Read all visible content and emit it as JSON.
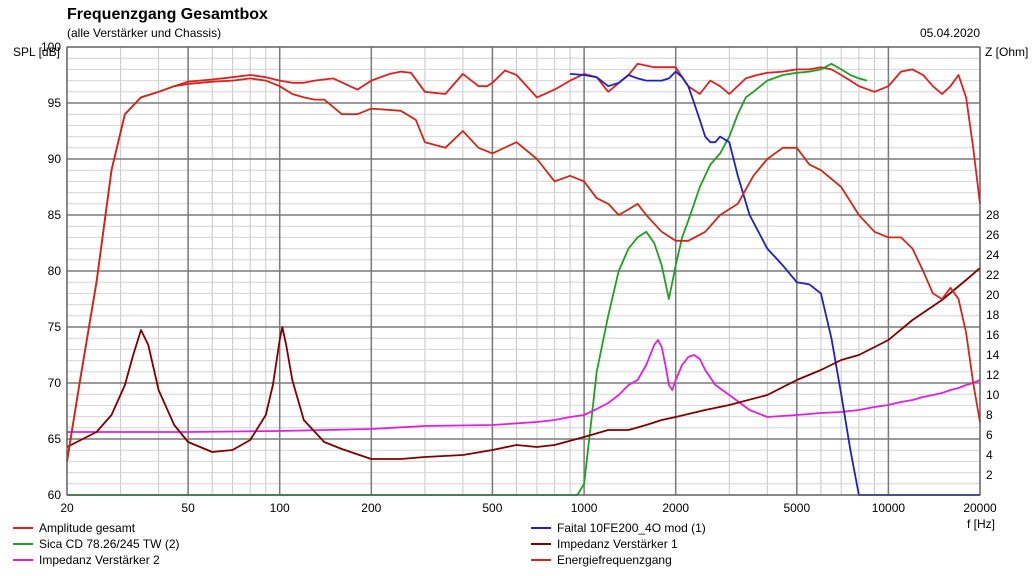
{
  "chart_data": {
    "type": "line",
    "title": "Frequenzgang Gesamtbox",
    "subtitle": "(alle Verstärker und Chassis)",
    "date": "05.04.2020",
    "ylabel_left": "SPL [dB]",
    "ylabel_right": "Z [Ohm]",
    "xlabel": "f [Hz]",
    "x_scale": "log",
    "xlim": [
      20,
      20000
    ],
    "ylim_left": [
      60,
      100
    ],
    "ylim_right": [
      0,
      28
    ],
    "grid": true,
    "x_ticks": [
      {
        "value": 20,
        "label": "20"
      },
      {
        "value": 50,
        "label": "50"
      },
      {
        "value": 100,
        "label": "100"
      },
      {
        "value": 200,
        "label": "200"
      },
      {
        "value": 500,
        "label": "500"
      },
      {
        "value": 1000,
        "label": "1000"
      },
      {
        "value": 2000,
        "label": "2000"
      },
      {
        "value": 5000,
        "label": "5000"
      },
      {
        "value": 10000,
        "label": "10000"
      },
      {
        "value": 20000,
        "label": "20000"
      }
    ],
    "y_ticks_left": [
      {
        "value": 60,
        "label": "60"
      },
      {
        "value": 65,
        "label": "65"
      },
      {
        "value": 70,
        "label": "70"
      },
      {
        "value": 75,
        "label": "75"
      },
      {
        "value": 80,
        "label": "80"
      },
      {
        "value": 85,
        "label": "85"
      },
      {
        "value": 90,
        "label": "90"
      },
      {
        "value": 95,
        "label": "95"
      },
      {
        "value": 100,
        "label": "100"
      }
    ],
    "y_ticks_right": [
      {
        "value": 2,
        "label": "2"
      },
      {
        "value": 4,
        "label": "4"
      },
      {
        "value": 6,
        "label": "6"
      },
      {
        "value": 8,
        "label": "8"
      },
      {
        "value": 10,
        "label": "10"
      },
      {
        "value": 12,
        "label": "12"
      },
      {
        "value": 14,
        "label": "14"
      },
      {
        "value": 16,
        "label": "16"
      },
      {
        "value": 18,
        "label": "18"
      },
      {
        "value": 20,
        "label": "20"
      },
      {
        "value": 22,
        "label": "22"
      },
      {
        "value": 24,
        "label": "24"
      },
      {
        "value": 26,
        "label": "26"
      },
      {
        "value": 28,
        "label": "28"
      }
    ],
    "legend_position": "bottom",
    "series": [
      {
        "name": "Amplitude gesamt",
        "color": "#e02020",
        "axis": "left",
        "x": [
          20,
          22,
          25,
          28,
          31,
          35,
          40,
          45,
          50,
          60,
          70,
          80,
          90,
          100,
          110,
          120,
          130,
          150,
          170,
          180,
          200,
          230,
          250,
          270,
          300,
          350,
          400,
          450,
          480,
          500,
          550,
          600,
          700,
          800,
          900,
          1000,
          1100,
          1200,
          1400,
          1500,
          1700,
          2000,
          2200,
          2400,
          2600,
          2800,
          3000,
          3400,
          3700,
          4000,
          4500,
          5000,
          5500,
          6000,
          6500,
          7000,
          7500,
          8000,
          9000,
          10000,
          11000,
          12000,
          13000,
          14000,
          15000,
          16000,
          17000,
          18000,
          19000,
          20000
        ],
        "y": [
          63,
          70,
          79,
          89,
          94,
          95.5,
          96,
          96.5,
          96.9,
          97.1,
          97.3,
          97.5,
          97.3,
          97.0,
          96.8,
          96.8,
          97.0,
          97.2,
          96.5,
          96.2,
          97.0,
          97.6,
          97.8,
          97.7,
          96.0,
          95.8,
          97.6,
          96.5,
          96.5,
          96.8,
          97.9,
          97.5,
          95.5,
          96.2,
          97.0,
          97.6,
          97.3,
          96.0,
          97.5,
          98.5,
          98.2,
          98.2,
          96.5,
          95.8,
          97.0,
          96.5,
          95.8,
          97.2,
          97.5,
          97.7,
          97.8,
          98.0,
          98.0,
          98.2,
          98.0,
          97.5,
          97.0,
          96.5,
          96.0,
          96.5,
          97.8,
          98.0,
          97.5,
          96.5,
          95.8,
          96.5,
          97.5,
          95.5,
          91.0,
          86.0
        ]
      },
      {
        "name": "Sica CD 78.26/245 TW (2)",
        "color": "#20a020",
        "axis": "left",
        "x": [
          20,
          900,
          950,
          1000,
          1050,
          1100,
          1200,
          1300,
          1400,
          1500,
          1600,
          1700,
          1800,
          1900,
          2000,
          2100,
          2200,
          2300,
          2400,
          2600,
          2800,
          3000,
          3200,
          3400,
          3600,
          4000,
          4500,
          5000,
          5500,
          6000,
          6500,
          7000,
          7500,
          8000,
          8500
        ],
        "y": [
          60,
          60,
          60,
          61,
          66,
          71,
          76,
          80,
          82,
          83,
          83.5,
          82.5,
          80.5,
          77.5,
          80.5,
          83,
          84.5,
          86,
          87.5,
          89.5,
          90.5,
          92,
          94,
          95.5,
          96,
          97,
          97.5,
          97.7,
          97.8,
          98.0,
          98.5,
          98.0,
          97.5,
          97.2,
          97.0
        ]
      },
      {
        "name": "Impedanz Verstärker 2",
        "color": "#e020e0",
        "axis": "right",
        "x": [
          20,
          30,
          50,
          100,
          200,
          300,
          500,
          700,
          800,
          900,
          1000,
          1100,
          1200,
          1300,
          1400,
          1500,
          1600,
          1700,
          1750,
          1800,
          1850,
          1900,
          1950,
          2000,
          2100,
          2200,
          2300,
          2400,
          2500,
          2700,
          3000,
          3500,
          4000,
          5000,
          6000,
          7000,
          8000,
          9000,
          10000,
          11000,
          12000,
          13000,
          14000,
          15000,
          16000,
          17000,
          18000,
          19000,
          20000
        ],
        "y": [
          6.3,
          6.3,
          6.3,
          6.4,
          6.6,
          6.9,
          7.0,
          7.3,
          7.5,
          7.8,
          8.0,
          8.6,
          9.2,
          10.0,
          11.0,
          11.5,
          13.0,
          15.0,
          15.5,
          14.8,
          13.0,
          11.0,
          10.5,
          11.5,
          13.0,
          13.8,
          14.0,
          13.6,
          12.5,
          11.0,
          10.0,
          8.5,
          7.8,
          8.0,
          8.2,
          8.3,
          8.5,
          8.8,
          9.0,
          9.3,
          9.5,
          9.8,
          10.0,
          10.2,
          10.5,
          10.7,
          11.0,
          11.2,
          11.5
        ]
      },
      {
        "name": "Faital 10FE200_4O mod (1)",
        "color": "#2020c0",
        "axis": "left",
        "x": [
          900,
          1000,
          1100,
          1200,
          1300,
          1400,
          1500,
          1600,
          1700,
          1800,
          1900,
          2000,
          2100,
          2200,
          2300,
          2400,
          2500,
          2600,
          2700,
          2800,
          3000,
          3200,
          3500,
          4000,
          4500,
          5000,
          5500,
          6000,
          6500,
          7000,
          7500,
          8000,
          9000,
          10000,
          12000,
          15000,
          20000
        ],
        "y": [
          97.6,
          97.5,
          97.3,
          96.5,
          96.8,
          97.5,
          97.2,
          97.0,
          97.0,
          97.0,
          97.2,
          97.8,
          97.3,
          96.5,
          95.0,
          93.5,
          92.0,
          91.5,
          91.5,
          92.0,
          91.5,
          88.5,
          85.0,
          82.0,
          80.5,
          79.0,
          78.8,
          78.0,
          74.0,
          69.0,
          64.0,
          60.0,
          60.0,
          60.0,
          60.0,
          60.0,
          60.0
        ]
      },
      {
        "name": "Impedanz Verstärker 1",
        "color": "#800000",
        "axis": "right",
        "x": [
          20,
          25,
          28,
          31,
          33,
          35,
          37,
          40,
          45,
          50,
          60,
          70,
          80,
          90,
          95,
          100,
          102,
          105,
          110,
          120,
          140,
          160,
          200,
          250,
          300,
          400,
          500,
          600,
          700,
          800,
          1000,
          1200,
          1400,
          1600,
          1800,
          2000,
          2500,
          3000,
          4000,
          5000,
          6000,
          7000,
          8000,
          10000,
          12000,
          15000,
          18000,
          20000
        ],
        "y": [
          4.8,
          6.3,
          8.0,
          11.0,
          14.0,
          16.5,
          15.0,
          10.5,
          7.0,
          5.3,
          4.3,
          4.5,
          5.5,
          8.0,
          11.0,
          15.5,
          16.8,
          15.0,
          11.5,
          7.5,
          5.3,
          4.6,
          3.6,
          3.6,
          3.8,
          4.0,
          4.5,
          5.0,
          4.8,
          5.0,
          5.8,
          6.5,
          6.5,
          7.0,
          7.5,
          7.8,
          8.5,
          9.0,
          10.0,
          11.5,
          12.5,
          13.5,
          14.0,
          15.5,
          17.5,
          19.5,
          21.5,
          22.7
        ]
      },
      {
        "name": "Energiefrequenzgang",
        "color": "#d02818",
        "axis": "left",
        "x": [
          20,
          22,
          25,
          28,
          31,
          35,
          40,
          45,
          50,
          60,
          70,
          80,
          90,
          100,
          110,
          120,
          130,
          140,
          160,
          180,
          200,
          250,
          280,
          300,
          350,
          400,
          450,
          500,
          600,
          700,
          800,
          900,
          1000,
          1100,
          1200,
          1300,
          1400,
          1500,
          1600,
          1800,
          2000,
          2200,
          2500,
          2800,
          3200,
          3600,
          4000,
          4500,
          5000,
          5500,
          6000,
          7000,
          8000,
          9000,
          10000,
          11000,
          12000,
          13000,
          14000,
          15000,
          16000,
          17000,
          18000,
          19000,
          20000
        ],
        "y": [
          63,
          70,
          79,
          89,
          94,
          95.5,
          96,
          96.5,
          96.7,
          96.9,
          97.0,
          97.2,
          97.0,
          96.5,
          95.8,
          95.5,
          95.3,
          95.3,
          94.0,
          94.0,
          94.5,
          94.3,
          93.5,
          91.5,
          91.0,
          92.5,
          91.0,
          90.5,
          91.5,
          90.0,
          88.0,
          88.5,
          88.0,
          86.5,
          86.0,
          85.0,
          85.5,
          86.0,
          85.0,
          83.5,
          82.7,
          82.7,
          83.5,
          85.0,
          86.0,
          88.5,
          90.0,
          91.0,
          91.0,
          89.5,
          89.0,
          87.5,
          85.0,
          83.5,
          83.0,
          83.0,
          82.0,
          80.0,
          78.0,
          77.5,
          78.5,
          77.5,
          74.5,
          70.0,
          66.5
        ]
      }
    ]
  }
}
